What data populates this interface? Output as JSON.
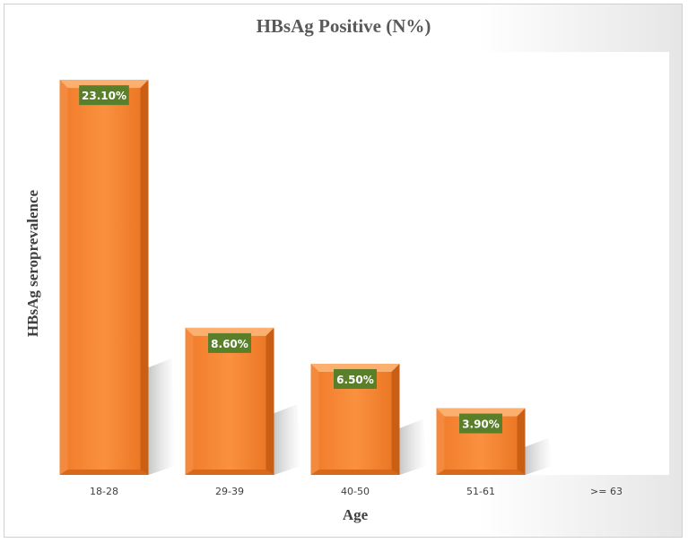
{
  "chart_data": {
    "type": "bar",
    "title": "HBsAg Positive (N%)",
    "xlabel": "Age",
    "ylabel": "HBsAg seroprevalence",
    "categories": [
      "18-28",
      "29-39",
      "40-50",
      "51-61",
      ">= 63"
    ],
    "values": [
      23.1,
      8.6,
      6.5,
      3.9,
      null
    ],
    "data_labels": [
      "23.10%",
      "8.60%",
      "6.50%",
      "3.90%",
      ""
    ],
    "ylim": [
      0,
      24
    ],
    "grid": false,
    "legend": "none",
    "colors": {
      "bar": "#f7893a",
      "bar_light": "#fbb070",
      "bar_dark": "#c85f14",
      "label_bg": "#5a7f2b"
    }
  }
}
